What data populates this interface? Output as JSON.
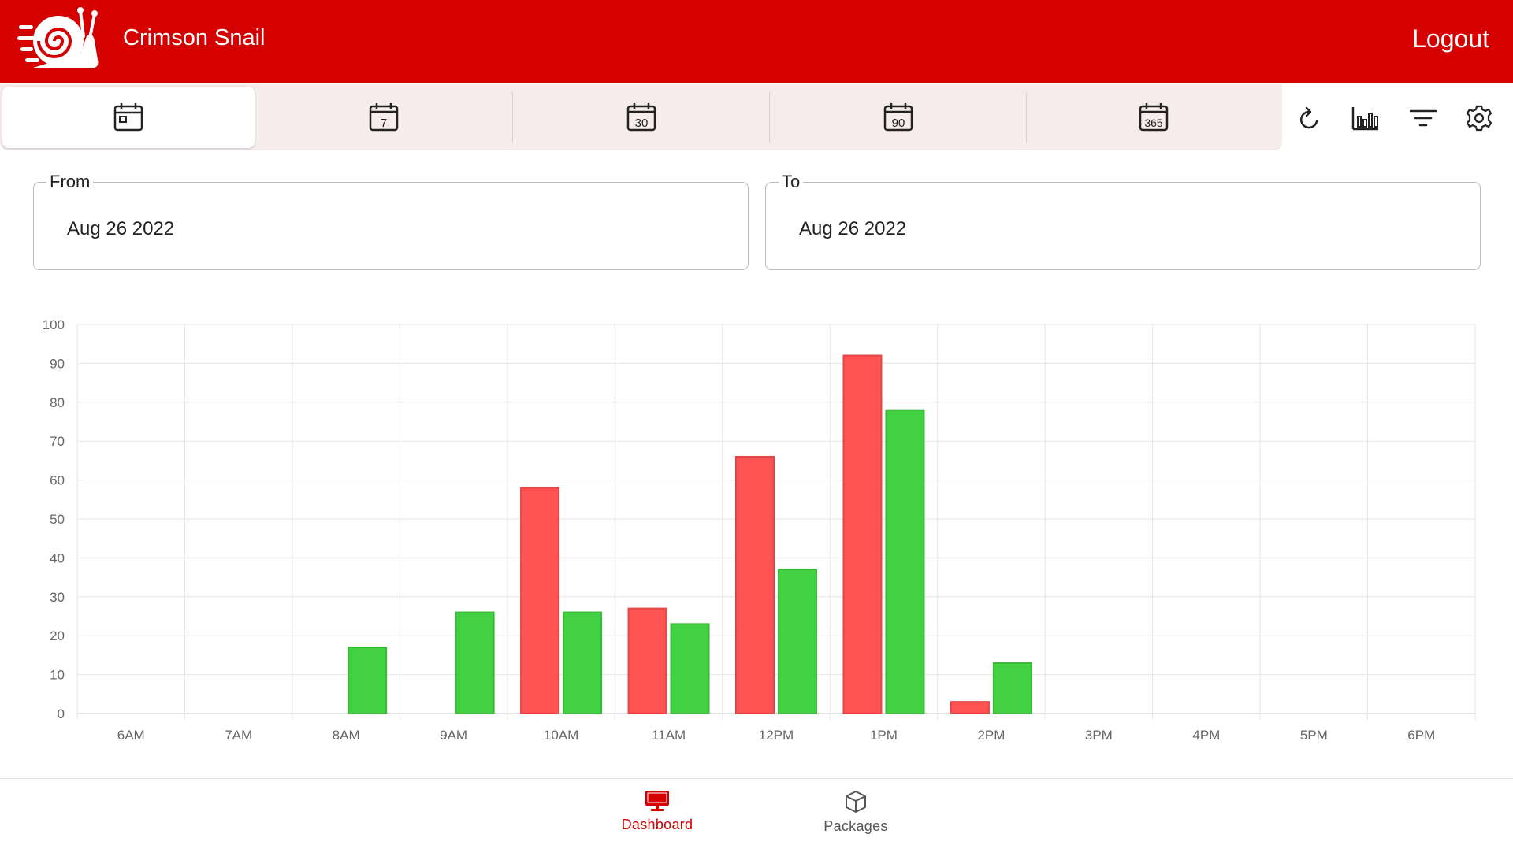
{
  "header": {
    "title": "Crimson Snail",
    "logout_label": "Logout"
  },
  "range_tabs": [
    {
      "id": "today",
      "label": "",
      "icon": "calendar-today-icon",
      "active": true
    },
    {
      "id": "7",
      "label": "7",
      "icon": "calendar-7-icon",
      "active": false
    },
    {
      "id": "30",
      "label": "30",
      "icon": "calendar-30-icon",
      "active": false
    },
    {
      "id": "90",
      "label": "90",
      "icon": "calendar-90-icon",
      "active": false
    },
    {
      "id": "365",
      "label": "365",
      "icon": "calendar-365-icon",
      "active": false
    }
  ],
  "toolbar": {
    "icons": [
      "refresh-icon",
      "bar-chart-icon",
      "filter-icon",
      "settings-icon"
    ]
  },
  "date_range": {
    "from_label": "From",
    "from_value": "Aug 26 2022",
    "to_label": "To",
    "to_value": "Aug 26 2022"
  },
  "colors": {
    "brand": "#d50000",
    "series_red": "#ff5252",
    "series_green": "#42d142",
    "nav_active": "#d50000",
    "nav_inactive": "#555555"
  },
  "chart_data": {
    "type": "bar",
    "title": "",
    "xlabel": "",
    "ylabel": "",
    "ylim": [
      0,
      100
    ],
    "yticks": [
      0,
      10,
      20,
      30,
      40,
      50,
      60,
      70,
      80,
      90,
      100
    ],
    "categories": [
      "6AM",
      "7AM",
      "8AM",
      "9AM",
      "10AM",
      "11AM",
      "12PM",
      "1PM",
      "2PM",
      "3PM",
      "4PM",
      "5PM",
      "6PM"
    ],
    "series": [
      {
        "name": "red",
        "color": "#ff5252",
        "values": [
          0,
          0,
          0,
          0,
          58,
          27,
          66,
          92,
          3,
          0,
          0,
          0,
          0
        ]
      },
      {
        "name": "green",
        "color": "#42d142",
        "values": [
          0,
          0,
          17,
          26,
          26,
          23,
          37,
          78,
          13,
          0,
          0,
          0,
          0
        ]
      }
    ]
  },
  "bottom_nav": [
    {
      "label": "Dashboard",
      "icon": "monitor-icon",
      "active": true
    },
    {
      "label": "Packages",
      "icon": "package-icon",
      "active": false
    }
  ]
}
